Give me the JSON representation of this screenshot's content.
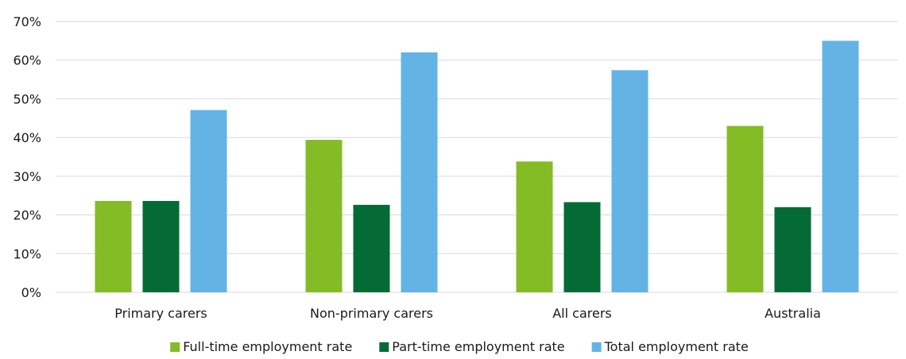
{
  "chart_data": {
    "type": "bar",
    "title": "",
    "xlabel": "",
    "ylabel": "",
    "categories": [
      "Primary carers",
      "Non-primary carers",
      "All carers",
      "Australia"
    ],
    "series": [
      {
        "name": "Full-time employment rate",
        "color": "#84bc25",
        "values": [
          23.6,
          39.4,
          33.8,
          43.0
        ]
      },
      {
        "name": "Part-time employment rate",
        "color": "#046b36",
        "values": [
          23.6,
          22.6,
          23.3,
          22.0
        ]
      },
      {
        "name": "Total employment rate",
        "color": "#63b4e4",
        "values": [
          47.1,
          62.0,
          57.4,
          65.0
        ]
      }
    ],
    "ylim": [
      0,
      70
    ],
    "yticks": [
      "0%",
      "10%",
      "20%",
      "30%",
      "40%",
      "50%",
      "60%",
      "70%"
    ],
    "grid": true,
    "legend_position": "bottom"
  }
}
